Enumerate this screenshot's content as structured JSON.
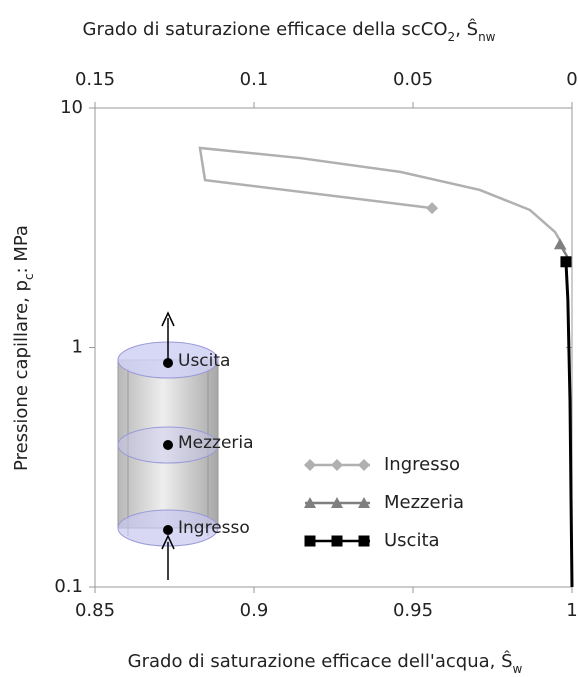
{
  "chart_data": {
    "type": "line",
    "x2label": [
      "Grado di saturazione efficace della scCO",
      "2",
      ", Ŝ",
      "nw"
    ],
    "xlabel": [
      "Grado di saturazione efficace dell'acqua, Ŝ",
      "w"
    ],
    "ylabel": [
      "Pressione capillare, p",
      "c",
      ": MPa"
    ],
    "xlim": [
      0.85,
      1
    ],
    "xticks": [
      0.85,
      0.9,
      0.95,
      1
    ],
    "x2lim": [
      0.15,
      0
    ],
    "x2ticks": [
      0.15,
      0.1,
      0.05,
      0
    ],
    "ylim": [
      0.1,
      10
    ],
    "yticks": [
      0.1,
      1,
      10
    ],
    "ylog": true,
    "series": [
      {
        "name": "Ingresso",
        "color": "#b0b0b0",
        "marker": "diamond",
        "x": [
          0.956,
          0.8846,
          0.883,
          0.9145,
          0.946,
          0.971,
          0.9868,
          0.9947,
          0.998
        ],
        "values": [
          3.82,
          5.0,
          6.81,
          6.18,
          5.41,
          4.55,
          3.75,
          3.03,
          2.55
        ]
      },
      {
        "name": "Mezzeria",
        "color": "#7f7f7f",
        "marker": "triangle",
        "x": [
          0.9962,
          0.9987
        ],
        "values": [
          2.7,
          2.37
        ]
      },
      {
        "name": "Uscita",
        "color": "#000000",
        "marker": "square",
        "x": [
          0.9981,
          0.9987,
          0.99937,
          0.9997,
          1.0
        ],
        "values": [
          2.28,
          1.58,
          0.604,
          0.231,
          0.1
        ]
      }
    ],
    "annotations": [
      "Uscita",
      "Mezzeria",
      "Ingresso"
    ],
    "legend": "lower right"
  }
}
